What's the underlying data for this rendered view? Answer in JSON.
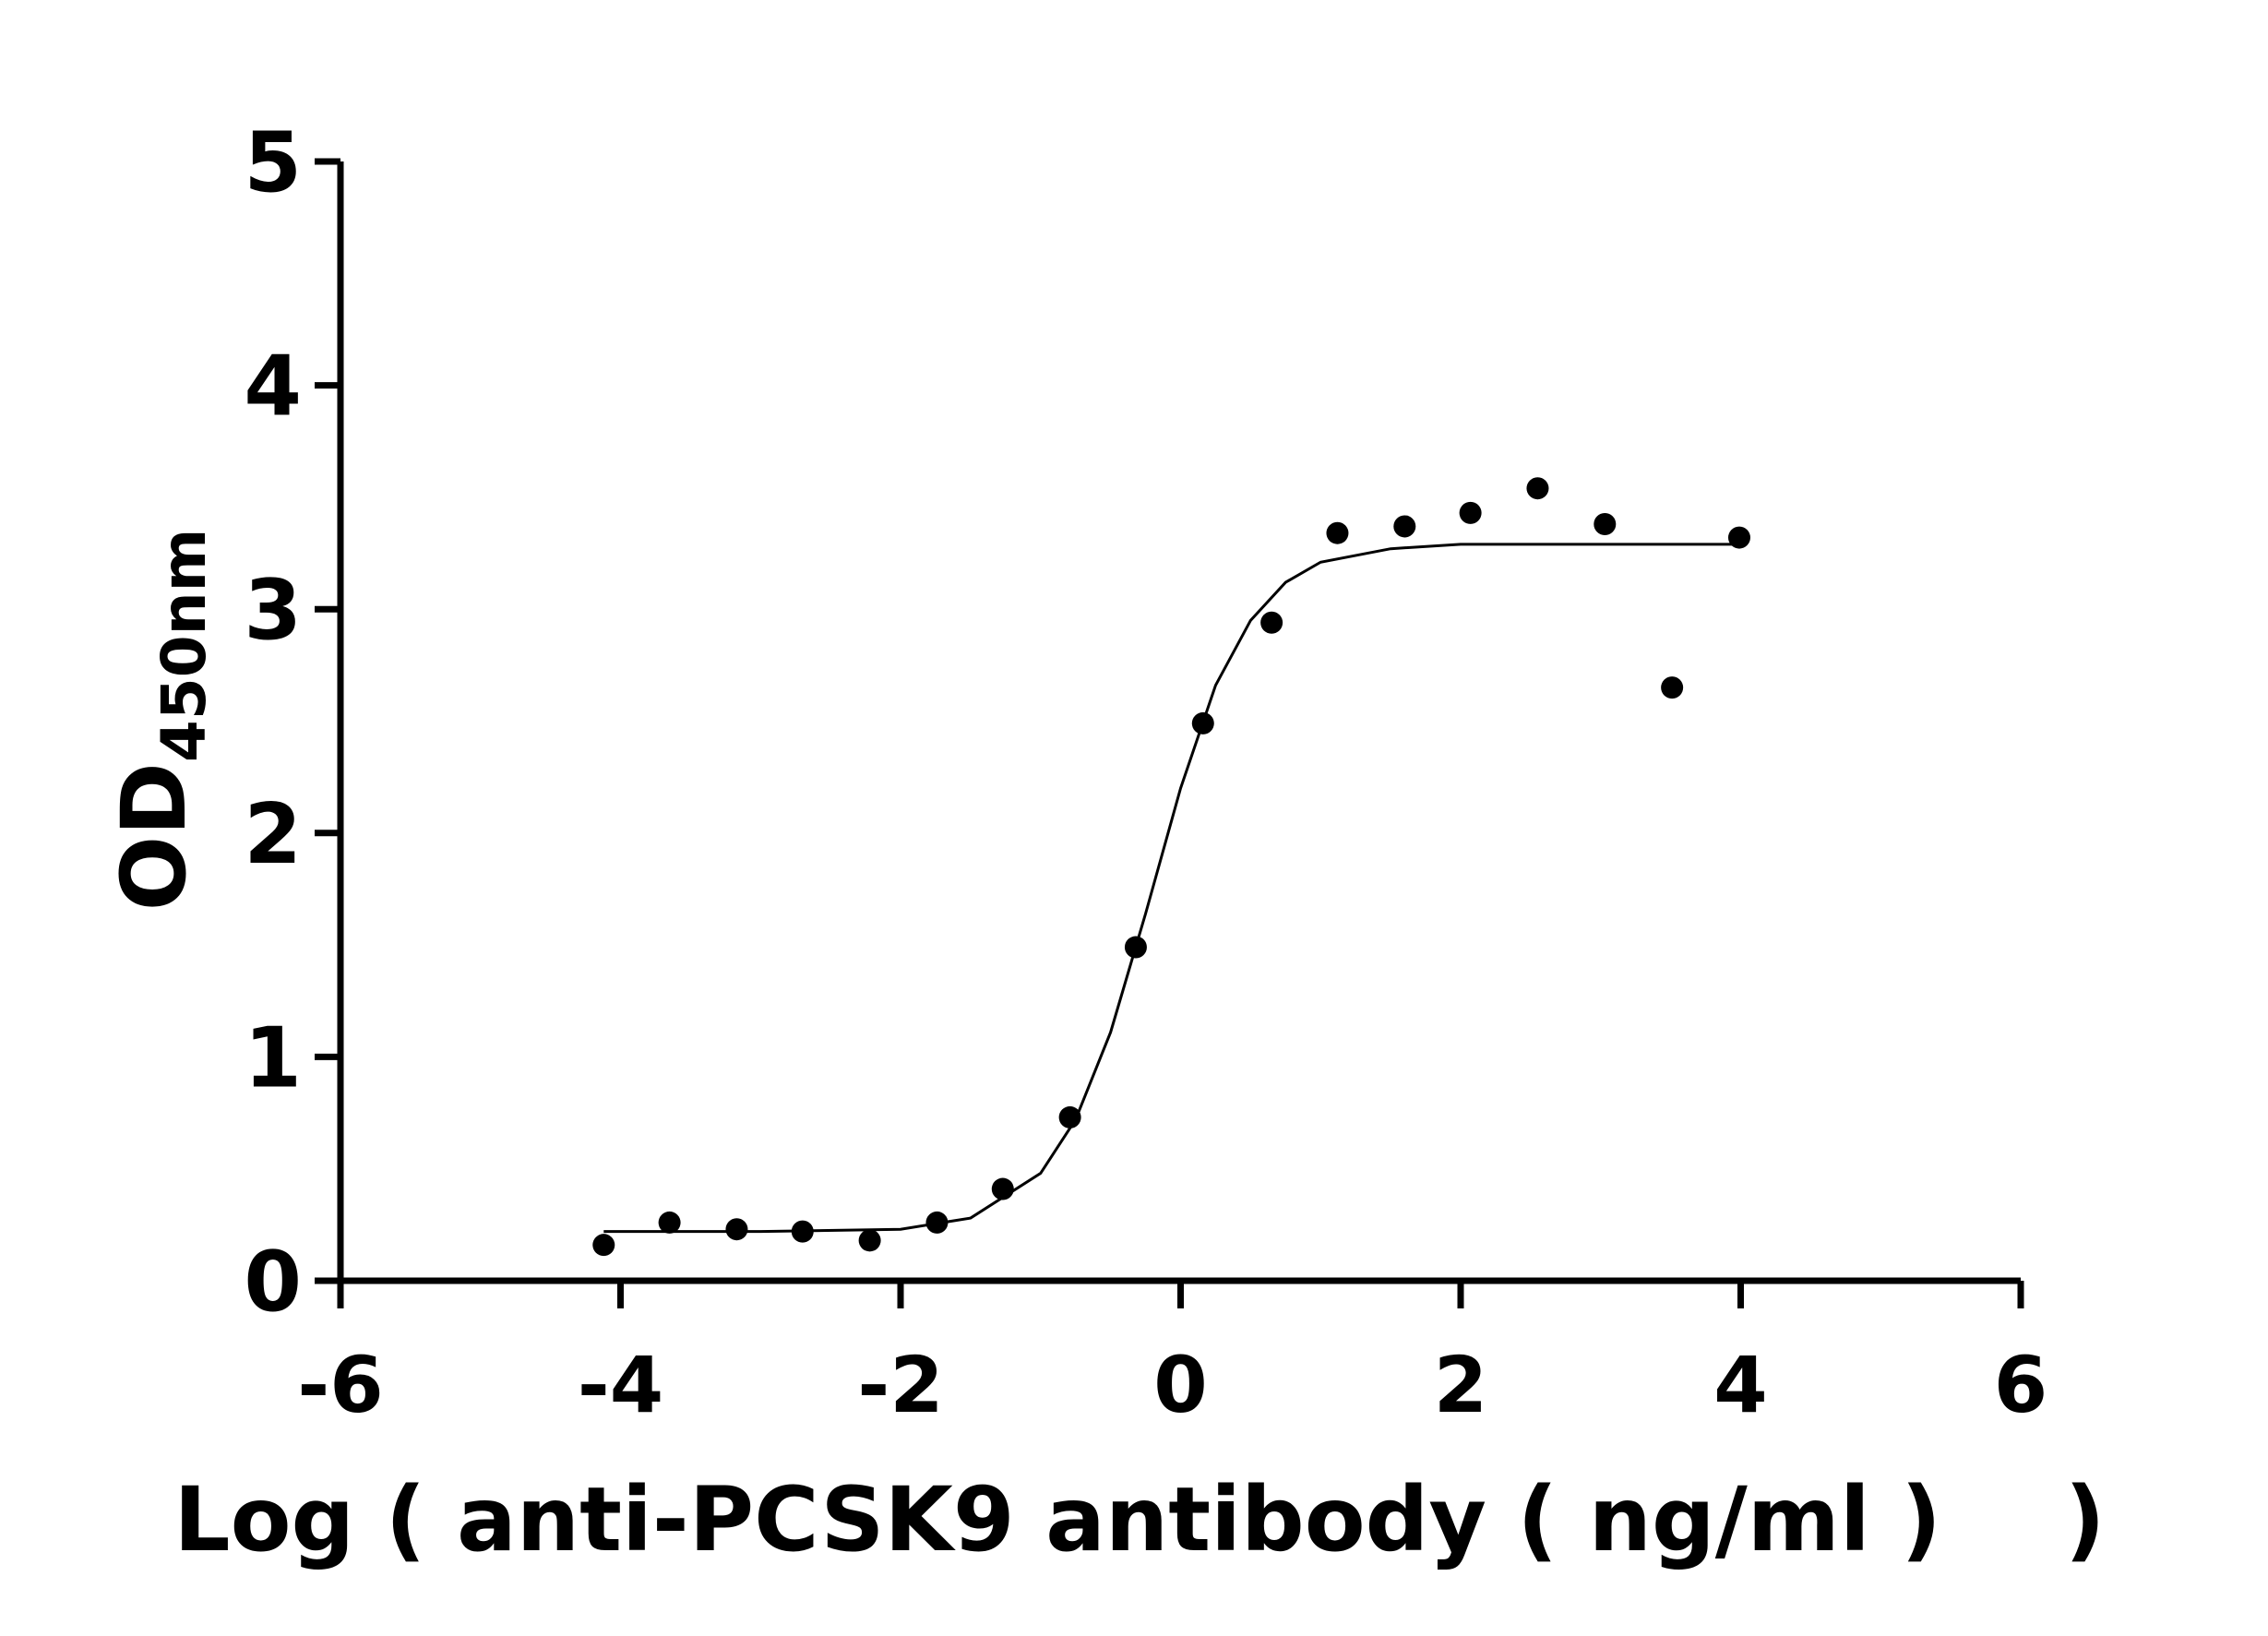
{
  "chart_data": {
    "type": "scatter",
    "ylabel": "OD",
    "ylabel_sub": "450nm",
    "xlabel": "Log ( anti-PCSK9 antibody ( ng/ml )    )",
    "xlim": [
      -6,
      6
    ],
    "xticks": [
      -6,
      -4,
      -2,
      0,
      2,
      4,
      6
    ],
    "ylim": [
      0,
      5
    ],
    "yticks": [
      0,
      1,
      2,
      3,
      4,
      5
    ],
    "color": "#000000",
    "x": [
      -4.12,
      -3.65,
      -3.17,
      -2.7,
      -2.22,
      -1.74,
      -1.27,
      -0.79,
      -0.32,
      0.16,
      0.65,
      1.12,
      1.6,
      2.07,
      2.55,
      3.03,
      3.51,
      3.99
    ],
    "values": [
      0.16,
      0.26,
      0.23,
      0.22,
      0.18,
      0.26,
      0.41,
      0.73,
      1.49,
      2.49,
      2.94,
      3.34,
      3.37,
      3.43,
      3.54,
      3.38,
      2.65,
      3.32
    ],
    "fit": {
      "x": [
        -4.12,
        -3,
        -2,
        -1.5,
        -1,
        -0.75,
        -0.5,
        -0.25,
        0,
        0.25,
        0.5,
        0.75,
        1,
        1.5,
        2,
        3,
        3.99
      ],
      "values": [
        0.22,
        0.22,
        0.23,
        0.28,
        0.48,
        0.72,
        1.11,
        1.64,
        2.2,
        2.66,
        2.95,
        3.12,
        3.21,
        3.27,
        3.29,
        3.29,
        3.29
      ]
    }
  }
}
